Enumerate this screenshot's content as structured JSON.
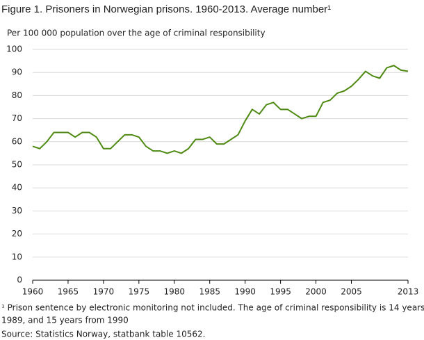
{
  "chart_data": {
    "type": "line",
    "title": "Figure 1. Prisoners in Norwegian prisons. 1960-2013. Average number¹",
    "y_label": "Per 100 000 population over the age of criminal responsibility",
    "x": [
      1960,
      1961,
      1962,
      1963,
      1964,
      1965,
      1966,
      1967,
      1968,
      1969,
      1970,
      1971,
      1972,
      1973,
      1974,
      1975,
      1976,
      1977,
      1978,
      1979,
      1980,
      1981,
      1982,
      1983,
      1984,
      1985,
      1986,
      1987,
      1988,
      1989,
      1990,
      1991,
      1992,
      1993,
      1994,
      1995,
      1996,
      1997,
      1998,
      1999,
      2000,
      2001,
      2002,
      2003,
      2004,
      2005,
      2006,
      2007,
      2008,
      2009,
      2010,
      2011,
      2012,
      2013
    ],
    "values": [
      58,
      57,
      60,
      64,
      64,
      64,
      62,
      64,
      64,
      62,
      57,
      57,
      60,
      63,
      63,
      62,
      58,
      56,
      56,
      55,
      56,
      55,
      57,
      61,
      61,
      62,
      59,
      59,
      61,
      63,
      69,
      74,
      72,
      76,
      77,
      74,
      74,
      72,
      70,
      71,
      71,
      77,
      78,
      81,
      82,
      84,
      87,
      90.5,
      88.5,
      87.5,
      92,
      93,
      91,
      90.5
    ],
    "color": "#4e8a12",
    "xlim": [
      1960,
      2013
    ],
    "xticks": [
      1960,
      1965,
      1970,
      1975,
      1980,
      1985,
      1990,
      1995,
      2000,
      2005,
      2013
    ],
    "ylim": [
      0,
      100
    ],
    "yticks": [
      0,
      10,
      20,
      30,
      40,
      50,
      60,
      70,
      80,
      90,
      100
    ],
    "grid": true,
    "footnote": [
      "¹ Prison sentence by electronic monitoring  not included. The age of criminal responsibility is 14 years until",
      "1989, and 15 years from 1990"
    ],
    "source": "Source: Statistics Norway, statbank table 10562."
  }
}
